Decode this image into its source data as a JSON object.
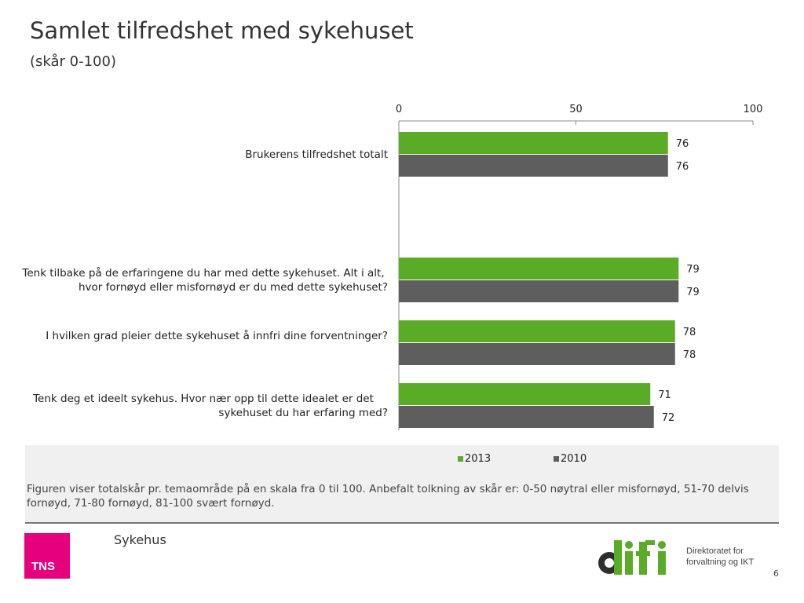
{
  "header": {
    "title": "Samlet tilfredshet med sykehuset",
    "subtitle": "(skår 0-100)"
  },
  "chart_data": {
    "type": "bar",
    "orientation": "horizontal",
    "categories": [
      "Brukerens tilfredshet totalt",
      "Tenk tilbake på de erfaringene du har med dette sykehuset. Alt i alt, hvor fornøyd eller misfornøyd er du med dette sykehuset?",
      "I hvilken grad pleier dette sykehuset å innfri dine forventninger?",
      "Tenk deg et ideelt sykehus. Hvor nær opp til dette idealet er det sykehuset du har erfaring med?"
    ],
    "series": [
      {
        "name": "2013",
        "color": "#5aac27",
        "values": [
          76,
          79,
          78,
          71
        ]
      },
      {
        "name": "2010",
        "color": "#5e5e5e",
        "values": [
          76,
          79,
          78,
          72
        ]
      }
    ],
    "xlim": [
      0,
      100
    ],
    "xticks": [
      "0",
      "50",
      "100"
    ],
    "xtick_values": [
      0,
      50,
      100
    ],
    "legend_position": "bottom",
    "grid": false
  },
  "note": "Figuren viser totalskår pr. temaområde på en skala fra 0 til 100. Anbefalt tolkning av skår er: 0-50 nøytral eller misfornøyd, 51-70 delvis fornøyd, 71-80 fornøyd, 81-100 svært fornøyd.",
  "footer": {
    "section_label": "Sykehus",
    "tns_logo_text": "TNS",
    "difi_logo_text": "difi",
    "difi_tagline_line1": "Direktoratet for",
    "difi_tagline_line2": "forvaltning og IKT",
    "page_number": "6"
  }
}
